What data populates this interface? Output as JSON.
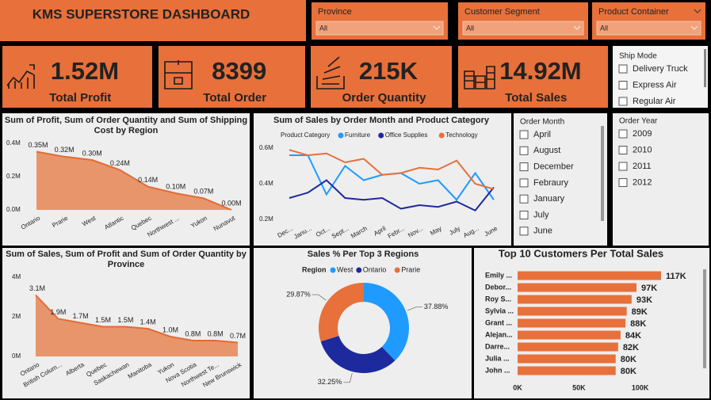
{
  "header": {
    "title": "KMS SUPERSTORE DASHBOARD"
  },
  "filters": [
    {
      "label": "Province",
      "value": "All"
    },
    {
      "label": "Customer Segment",
      "value": "All"
    },
    {
      "label": "Product Container",
      "value": "All"
    }
  ],
  "kpis": [
    {
      "value": "1.52M",
      "label": "Total Profit"
    },
    {
      "value": "8399",
      "label": "Total Order"
    },
    {
      "value": "215K",
      "label": "Order Quantity"
    },
    {
      "value": "14.92M",
      "label": "Total Sales"
    }
  ],
  "slicers": [
    {
      "title": "Ship Mode",
      "items": [
        "Delivery Truck",
        "Express Air",
        "Regular Air"
      ]
    },
    {
      "title": "Order Month",
      "items": [
        "April",
        "August",
        "December",
        "Febraury",
        "January",
        "July",
        "June"
      ]
    },
    {
      "title": "Order Year",
      "items": [
        "2009",
        "2010",
        "2011",
        "2012"
      ]
    }
  ],
  "chart_data": [
    {
      "type": "area",
      "title": "Sum of Profit, Sum of Order Quantity and Sum of Shipping Cost by Region",
      "categories": [
        "Ontario",
        "Prarie",
        "West",
        "Atlantic",
        "Quebec",
        "Northwest ...",
        "Yukon",
        "Nunavut"
      ],
      "values": [
        0.35,
        0.32,
        0.3,
        0.24,
        0.14,
        0.1,
        0.07,
        0.0
      ],
      "value_labels": [
        "0.35M",
        "0.32M",
        "0.30M",
        "0.24M",
        "0.14M",
        "0.10M",
        "0.07M",
        "0.00M"
      ],
      "color": "#e8956b",
      "ylim": [
        0,
        0.4
      ],
      "yticks": [
        {
          "value": 0,
          "label": "0.0M"
        },
        {
          "value": 0.2,
          "label": "0.2M"
        },
        {
          "value": 0.4,
          "label": "0.4M"
        }
      ]
    },
    {
      "type": "line",
      "title": "Sum of Sales by Order Month and Product Category",
      "legend_title": "Product Category",
      "categories": [
        "Dec...",
        "Janu...",
        "Oct...",
        "Sept...",
        "March",
        "April",
        "Febr...",
        "Nov...",
        "May",
        "July",
        "Aug...",
        "June"
      ],
      "series": [
        {
          "name": "Furniture",
          "color": "#1f9bff",
          "values": [
            0.56,
            0.56,
            0.34,
            0.5,
            0.42,
            0.45,
            0.46,
            0.4,
            0.42,
            0.31,
            0.46,
            0.31
          ]
        },
        {
          "name": "Office Supplies",
          "color": "#1c2a9e",
          "values": [
            0.32,
            0.35,
            0.42,
            0.32,
            0.31,
            0.32,
            0.26,
            0.28,
            0.27,
            0.3,
            0.25,
            0.38
          ]
        },
        {
          "name": "Technology",
          "color": "#e8703a",
          "values": [
            0.59,
            0.56,
            0.57,
            0.52,
            0.54,
            0.45,
            0.46,
            0.49,
            0.48,
            0.53,
            0.4,
            0.37
          ]
        }
      ],
      "ylim": [
        0.15,
        0.65
      ],
      "yticks": [
        {
          "value": 0.2,
          "label": "0.2M"
        },
        {
          "value": 0.4,
          "label": "0.4M"
        },
        {
          "value": 0.6,
          "label": "0.6M"
        }
      ]
    },
    {
      "type": "area",
      "title": "Sum of Sales, Sum of Profit and Sum of Order Quantity by Province",
      "categories": [
        "Ontario",
        "British Colum...",
        "Alberta",
        "Quebec",
        "Saskachewan",
        "Manitoba",
        "Yukon",
        "Nova Scotia",
        "Northwest Te...",
        "New Brunswick"
      ],
      "values": [
        3.1,
        1.9,
        1.7,
        1.5,
        1.5,
        1.4,
        1.0,
        0.8,
        0.8,
        0.7
      ],
      "value_labels": [
        "3.1M",
        "1.9M",
        "1.7M",
        "1.5M",
        "1.5M",
        "1.4M",
        "1.0M",
        "0.8M",
        "0.8M",
        "0.7M"
      ],
      "color": "#e8956b",
      "ylim": [
        0,
        4
      ],
      "yticks": [
        {
          "value": 0,
          "label": "0M"
        },
        {
          "value": 2,
          "label": "2M"
        },
        {
          "value": 4,
          "label": "4M"
        }
      ]
    },
    {
      "type": "pie",
      "title": "Sales % Per Top 3 Regions",
      "legend_title": "Region",
      "categories": [
        "West",
        "Ontario",
        "Prarie"
      ],
      "values": [
        37.88,
        32.25,
        29.87
      ],
      "value_labels": [
        "37.88%",
        "32.25%",
        "29.87%"
      ],
      "colors": [
        "#1f9bff",
        "#1c2a9e",
        "#e8703a"
      ]
    },
    {
      "type": "bar",
      "orientation": "horizontal",
      "title": "Top 10 Customers Per Total Sales",
      "categories": [
        "Emily ...",
        "Debor...",
        "Roy S...",
        "Sylvia ...",
        "Grant ...",
        "Alejan...",
        "Darre...",
        "Julia ...",
        "John ..."
      ],
      "values": [
        117,
        97,
        93,
        89,
        88,
        84,
        82,
        80,
        80
      ],
      "value_labels": [
        "117K",
        "97K",
        "93K",
        "89K",
        "88K",
        "84K",
        "82K",
        "80K",
        "80K"
      ],
      "color": "#e8703a",
      "xlim": [
        0,
        150
      ],
      "xticks": [
        {
          "value": 0,
          "label": "0K"
        },
        {
          "value": 50,
          "label": "50K"
        },
        {
          "value": 100,
          "label": "100K"
        }
      ]
    }
  ]
}
